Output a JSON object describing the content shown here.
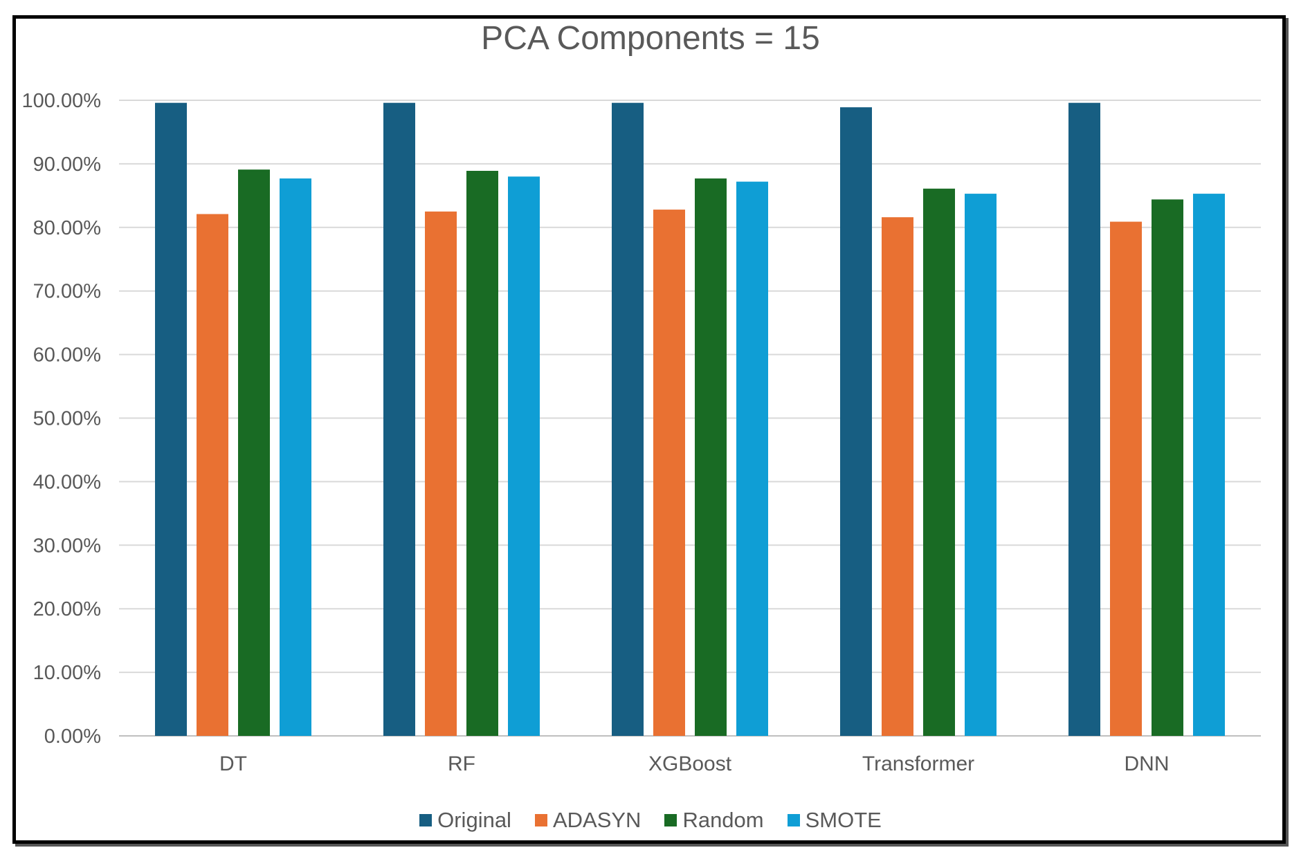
{
  "chart_data": {
    "type": "bar",
    "title": "PCA Components = 15",
    "xlabel": "",
    "ylabel": "",
    "ylim": [
      0,
      100
    ],
    "y_ticks": [
      "0.00%",
      "10.00%",
      "20.00%",
      "30.00%",
      "40.00%",
      "50.00%",
      "60.00%",
      "70.00%",
      "80.00%",
      "90.00%",
      "100.00%"
    ],
    "categories": [
      "DT",
      "RF",
      "XGBoost",
      "Transformer",
      "DNN"
    ],
    "series": [
      {
        "name": "Original",
        "color": "#175E82",
        "values": [
          99.6,
          99.6,
          99.6,
          98.9,
          99.6
        ]
      },
      {
        "name": "ADASYN",
        "color": "#E97132",
        "values": [
          82.1,
          82.5,
          82.8,
          81.6,
          80.9
        ]
      },
      {
        "name": "Random",
        "color": "#196B24",
        "values": [
          89.1,
          88.9,
          87.7,
          86.1,
          84.4
        ]
      },
      {
        "name": "SMOTE",
        "color": "#0F9ED5",
        "values": [
          87.7,
          88.0,
          87.2,
          85.3,
          85.3
        ]
      }
    ],
    "grid": true,
    "legend": "bottom"
  }
}
